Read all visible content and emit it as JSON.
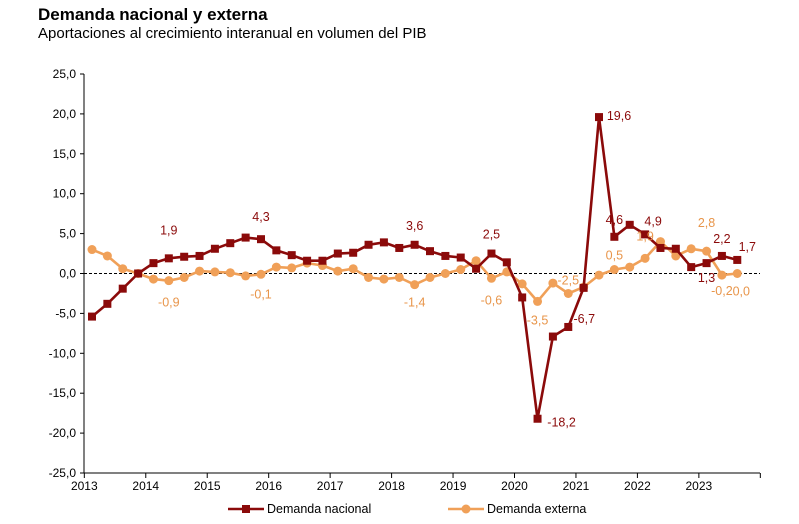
{
  "chart_data": {
    "type": "line",
    "title": "Demanda nacional y externa",
    "subtitle": "Aportaciones al crecimiento interanual en volumen del PIB",
    "xlabel": "",
    "ylabel": "",
    "ylim": [
      -25,
      25
    ],
    "yticks": [
      "25,0",
      "20,0",
      "15,0",
      "10,0",
      "5,0",
      "0,0",
      "-5,0",
      "-10,0",
      "-15,0",
      "-20,0",
      "-25,0"
    ],
    "year_labels": [
      "2013",
      "2014",
      "2015",
      "2016",
      "2017",
      "2018",
      "2019",
      "2020",
      "2021",
      "2022",
      "2023"
    ],
    "x": [
      "2013-T1",
      "2013-T2",
      "2013-T3",
      "2013-T4",
      "2014-T1",
      "2014-T2",
      "2014-T3",
      "2014-T4",
      "2015-T1",
      "2015-T2",
      "2015-T3",
      "2015-T4",
      "2016-T1",
      "2016-T2",
      "2016-T3",
      "2016-T4",
      "2017-T1",
      "2017-T2",
      "2017-T3",
      "2017-T4",
      "2018-T1",
      "2018-T2",
      "2018-T3",
      "2018-T4",
      "2019-T1",
      "2019-T2",
      "2019-T3",
      "2019-T4",
      "2020-T1",
      "2020-T2",
      "2020-T3",
      "2020-T4",
      "2021-T1",
      "2021-T2",
      "2021-T3",
      "2021-T4",
      "2022-T1",
      "2022-T2",
      "2022-T3",
      "2022-T4",
      "2023-T1",
      "2023-T2",
      "2023-T3"
    ],
    "series": [
      {
        "name": "Demanda nacional",
        "color": "#8B0A0A",
        "marker": "square",
        "values": [
          -5.4,
          -3.8,
          -1.9,
          0.0,
          1.3,
          1.9,
          2.1,
          2.2,
          3.1,
          3.8,
          4.5,
          4.3,
          2.9,
          2.3,
          1.6,
          1.6,
          2.5,
          2.6,
          3.6,
          3.9,
          3.2,
          3.6,
          2.8,
          2.2,
          2.0,
          0.6,
          2.5,
          1.4,
          -3.0,
          -18.2,
          -7.9,
          -6.7,
          -1.8,
          19.6,
          4.6,
          6.1,
          4.9,
          3.2,
          3.1,
          0.8,
          1.3,
          2.2,
          1.7
        ]
      },
      {
        "name": "Demanda externa",
        "color": "#F0A058",
        "marker": "circle",
        "values": [
          3.0,
          2.2,
          0.6,
          0.0,
          -0.7,
          -0.9,
          -0.5,
          0.3,
          0.2,
          0.1,
          -0.3,
          -0.1,
          0.8,
          0.7,
          1.3,
          1.0,
          0.3,
          0.6,
          -0.5,
          -0.7,
          -0.5,
          -1.4,
          -0.5,
          0.0,
          0.5,
          1.6,
          -0.6,
          0.2,
          -1.3,
          -3.5,
          -1.2,
          -2.5,
          -1.7,
          -0.2,
          0.5,
          0.8,
          1.9,
          4.0,
          2.2,
          3.1,
          2.8,
          -0.2,
          0.0
        ]
      }
    ],
    "annotations": [
      {
        "series": 0,
        "index": 5,
        "text": "1,9"
      },
      {
        "series": 0,
        "index": 11,
        "text": "4,3"
      },
      {
        "series": 0,
        "index": 21,
        "text": "3,6"
      },
      {
        "series": 0,
        "index": 26,
        "text": "2,5"
      },
      {
        "series": 0,
        "index": 29,
        "text": "-18,2"
      },
      {
        "series": 0,
        "index": 31,
        "text": "-6,7"
      },
      {
        "series": 0,
        "index": 33,
        "text": "19,6"
      },
      {
        "series": 0,
        "index": 34,
        "text": "4,6"
      },
      {
        "series": 0,
        "index": 36,
        "text": "4,9"
      },
      {
        "series": 0,
        "index": 40,
        "text": "1,3"
      },
      {
        "series": 0,
        "index": 41,
        "text": "2,2"
      },
      {
        "series": 0,
        "index": 42,
        "text": "1,7"
      },
      {
        "series": 1,
        "index": 5,
        "text": "-0,9"
      },
      {
        "series": 1,
        "index": 11,
        "text": "-0,1"
      },
      {
        "series": 1,
        "index": 21,
        "text": "-1,4"
      },
      {
        "series": 1,
        "index": 26,
        "text": "-0,6"
      },
      {
        "series": 1,
        "index": 29,
        "text": "-3,5"
      },
      {
        "series": 1,
        "index": 31,
        "text": "-2,5"
      },
      {
        "series": 1,
        "index": 34,
        "text": "0,5"
      },
      {
        "series": 1,
        "index": 36,
        "text": "1,9"
      },
      {
        "series": 1,
        "index": 40,
        "text": "2,8"
      },
      {
        "series": 1,
        "index": 41,
        "text": "-0,2"
      },
      {
        "series": 1,
        "index": 42,
        "text": "0,0"
      }
    ],
    "legend": {
      "position": "bottom"
    },
    "grid": false
  }
}
